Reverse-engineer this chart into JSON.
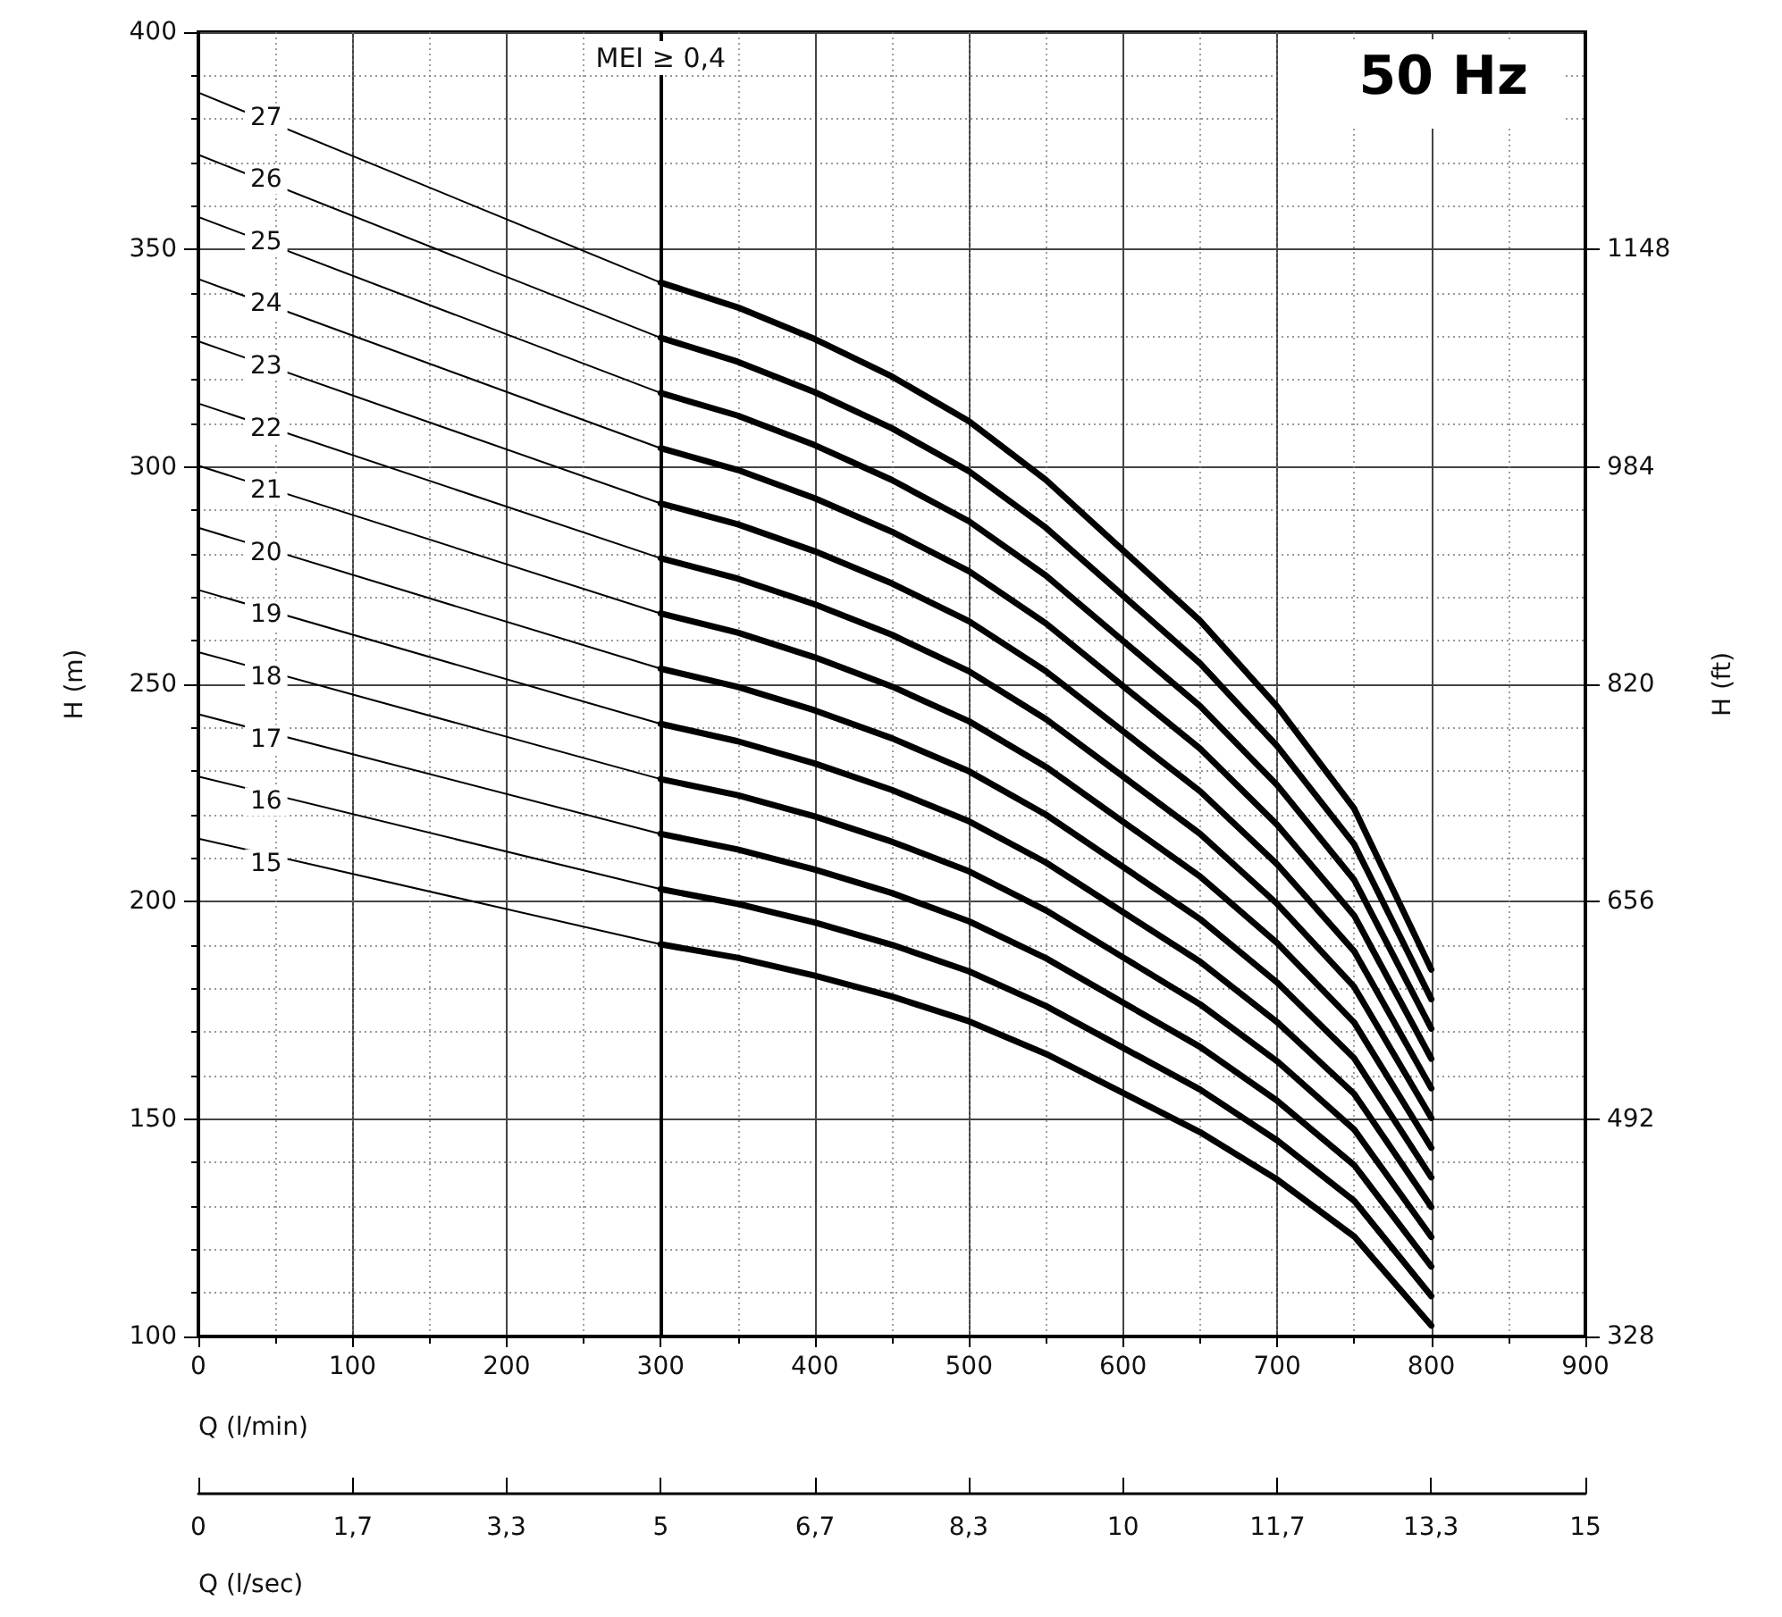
{
  "chart_data": {
    "type": "line",
    "title": "50 Hz",
    "xlabel": "Q (l/min)",
    "ylabel": "H (m)",
    "y2label": "H (ft)",
    "x2label": "Q (l/sec)",
    "xlim": [
      0,
      900
    ],
    "xticks": [
      0,
      100,
      200,
      300,
      400,
      500,
      600,
      700,
      800,
      900
    ],
    "ylim": [
      100,
      400
    ],
    "yticks": [
      100,
      150,
      200,
      250,
      300,
      350,
      400
    ],
    "y2lim": [
      328,
      1312
    ],
    "y2ticks": [
      328,
      492,
      656,
      820,
      984,
      1148
    ],
    "x2lim": [
      0,
      15
    ],
    "x2ticks": [
      0,
      {
        "value": 1.67,
        "label": "1,7"
      },
      {
        "value": 3.33,
        "label": "3,3"
      },
      5,
      {
        "value": 6.67,
        "label": "6,7"
      },
      {
        "value": 8.33,
        "label": "8,3"
      },
      10,
      {
        "value": 11.67,
        "label": "11,7"
      },
      {
        "value": 13.33,
        "label": "13,3"
      },
      15
    ],
    "grid": true,
    "legend": false,
    "marker": "none",
    "ref_lines": [
      {
        "axis": "x",
        "value": 300,
        "label": "MEI ≥ 0,4",
        "color": "#000000"
      }
    ],
    "series": [
      {
        "name": "27",
        "color": "#000000",
        "x": [
          0,
          300
        ],
        "values": [
          386.1,
          342.4
        ]
      },
      {
        "name": "26",
        "color": "#000000",
        "x": [
          0,
          300
        ],
        "values": [
          371.8,
          329.7
        ]
      },
      {
        "name": "25",
        "color": "#000000",
        "x": [
          0,
          300
        ],
        "values": [
          357.5,
          317
        ]
      },
      {
        "name": "24",
        "color": "#000000",
        "x": [
          0,
          300
        ],
        "values": [
          343.2,
          304.3
        ]
      },
      {
        "name": "23",
        "color": "#000000",
        "x": [
          0,
          300
        ],
        "values": [
          328.9,
          291.6
        ]
      },
      {
        "name": "22",
        "color": "#000000",
        "x": [
          0,
          300
        ],
        "values": [
          314.6,
          279
        ]
      },
      {
        "name": "21",
        "color": "#000000",
        "x": [
          0,
          300
        ],
        "values": [
          300.3,
          266.3
        ]
      },
      {
        "name": "20",
        "color": "#000000",
        "x": [
          0,
          300
        ],
        "values": [
          286,
          253.6
        ]
      },
      {
        "name": "19",
        "color": "#000000",
        "x": [
          0,
          300
        ],
        "values": [
          271.7,
          240.9
        ]
      },
      {
        "name": "18",
        "color": "#000000",
        "x": [
          0,
          300
        ],
        "values": [
          257.4,
          228.2
        ]
      },
      {
        "name": "17",
        "color": "#000000",
        "x": [
          0,
          300
        ],
        "values": [
          243.1,
          215.6
        ]
      },
      {
        "name": "16",
        "color": "#000000",
        "x": [
          0,
          300
        ],
        "values": [
          228.8,
          202.9
        ]
      },
      {
        "name": "15",
        "color": "#000000",
        "x": [
          0,
          300
        ],
        "values": [
          214.5,
          190.2
        ]
      },
      {
        "color": "#000000",
        "x": [
          300,
          350,
          400,
          450,
          500,
          550,
          600,
          650,
          700,
          750,
          800
        ],
        "values": [
          342.4,
          336.7,
          329.4,
          320.8,
          310.5,
          297,
          280.8,
          264.6,
          244.9,
          221.4,
          184.4
        ]
      },
      {
        "color": "#000000",
        "x": [
          300,
          350,
          400,
          450,
          500,
          550,
          600,
          650,
          700,
          750,
          800
        ],
        "values": [
          329.7,
          324.2,
          317.2,
          308.9,
          299,
          286,
          270.4,
          254.8,
          235.8,
          213.2,
          177.6
        ]
      },
      {
        "color": "#000000",
        "x": [
          300,
          350,
          400,
          450,
          500,
          550,
          600,
          650,
          700,
          750,
          800
        ],
        "values": [
          317,
          311.8,
          305,
          297,
          287.5,
          275,
          260,
          245,
          226.8,
          205,
          170.8
        ]
      },
      {
        "color": "#000000",
        "x": [
          300,
          350,
          400,
          450,
          500,
          550,
          600,
          650,
          700,
          750,
          800
        ],
        "values": [
          304.3,
          299.3,
          292.8,
          285.1,
          276,
          264,
          249.6,
          235.2,
          217.7,
          196.8,
          163.9
        ]
      },
      {
        "color": "#000000",
        "x": [
          300,
          350,
          400,
          450,
          500,
          550,
          600,
          650,
          700,
          750,
          800
        ],
        "values": [
          291.6,
          286.8,
          280.6,
          273.2,
          264.5,
          253,
          239.2,
          225.4,
          208.6,
          188.6,
          157.1
        ]
      },
      {
        "color": "#000000",
        "x": [
          300,
          350,
          400,
          450,
          500,
          550,
          600,
          650,
          700,
          750,
          800
        ],
        "values": [
          279,
          274.3,
          268.4,
          261.4,
          253,
          242,
          228.8,
          215.6,
          199.5,
          180.4,
          150.3
        ]
      },
      {
        "color": "#000000",
        "x": [
          300,
          350,
          400,
          450,
          500,
          550,
          600,
          650,
          700,
          750,
          800
        ],
        "values": [
          266.3,
          261.9,
          256.2,
          249.5,
          241.5,
          231,
          218.4,
          205.8,
          190.5,
          172.2,
          143.4
        ]
      },
      {
        "color": "#000000",
        "x": [
          300,
          350,
          400,
          450,
          500,
          550,
          600,
          650,
          700,
          750,
          800
        ],
        "values": [
          253.6,
          249.4,
          244,
          237.6,
          230,
          220,
          208,
          196,
          181.4,
          164,
          136.6
        ]
      },
      {
        "color": "#000000",
        "x": [
          300,
          350,
          400,
          450,
          500,
          550,
          600,
          650,
          700,
          750,
          800
        ],
        "values": [
          240.9,
          236.9,
          231.8,
          225.7,
          218.5,
          209,
          197.6,
          186.2,
          172.3,
          155.8,
          129.8
        ]
      },
      {
        "color": "#000000",
        "x": [
          300,
          350,
          400,
          450,
          500,
          550,
          600,
          650,
          700,
          750,
          800
        ],
        "values": [
          228.2,
          224.5,
          219.6,
          213.8,
          207,
          198,
          187.2,
          176.4,
          163.3,
          147.6,
          122.9
        ]
      },
      {
        "color": "#000000",
        "x": [
          300,
          350,
          400,
          450,
          500,
          550,
          600,
          650,
          700,
          750,
          800
        ],
        "values": [
          215.6,
          212,
          207.4,
          202,
          195.5,
          187,
          176.8,
          166.6,
          154.2,
          139.4,
          116.1
        ]
      },
      {
        "color": "#000000",
        "x": [
          300,
          350,
          400,
          450,
          500,
          550,
          600,
          650,
          700,
          750,
          800
        ],
        "values": [
          202.9,
          199.5,
          195.2,
          190.1,
          184,
          176,
          166.4,
          156.8,
          145.1,
          131.2,
          109.3
        ]
      },
      {
        "color": "#000000",
        "x": [
          300,
          350,
          400,
          450,
          500,
          550,
          600,
          650,
          700,
          750,
          800
        ],
        "values": [
          190.2,
          187.1,
          183,
          178.2,
          172.5,
          165,
          156,
          147,
          136.1,
          123,
          102.5
        ]
      }
    ]
  }
}
